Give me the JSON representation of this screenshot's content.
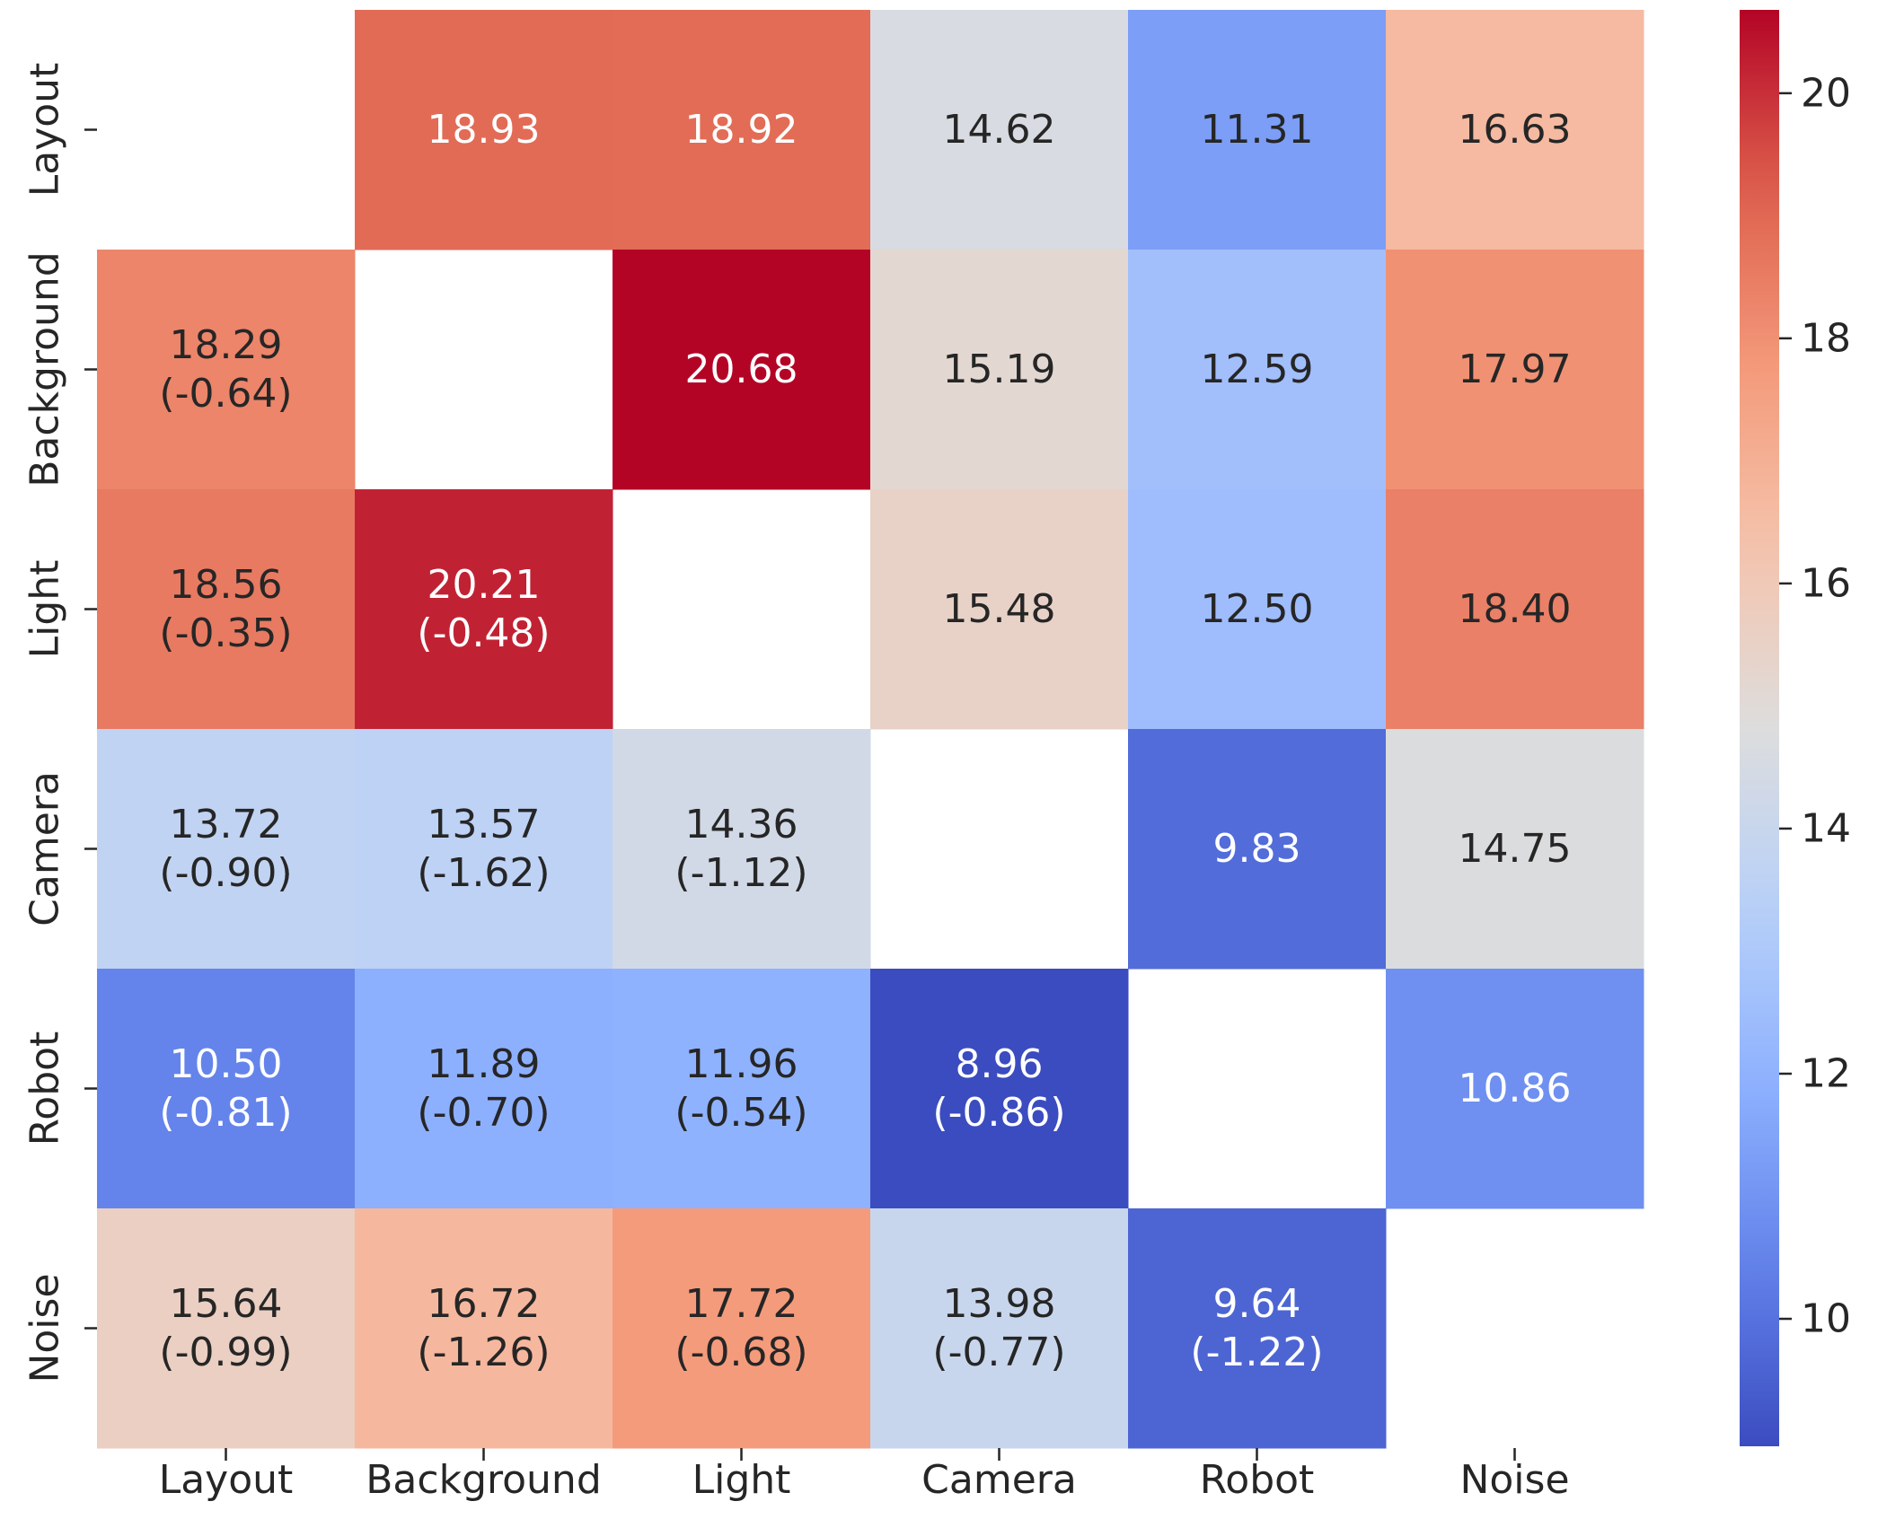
{
  "chart_data": {
    "type": "heatmap",
    "title": "",
    "xlabel": "",
    "ylabel": "",
    "x_categories": [
      "Layout",
      "Background",
      "Light",
      "Camera",
      "Robot",
      "Noise"
    ],
    "y_categories": [
      "Layout",
      "Background",
      "Light",
      "Camera",
      "Robot",
      "Noise"
    ],
    "values": [
      [
        null,
        18.93,
        18.92,
        14.62,
        11.31,
        16.63
      ],
      [
        18.29,
        null,
        20.68,
        15.19,
        12.59,
        17.97
      ],
      [
        18.56,
        20.21,
        null,
        15.48,
        12.5,
        18.4
      ],
      [
        13.72,
        13.57,
        14.36,
        null,
        9.83,
        14.75
      ],
      [
        10.5,
        11.89,
        11.96,
        8.96,
        null,
        10.86
      ],
      [
        15.64,
        16.72,
        17.72,
        13.98,
        9.64,
        null
      ]
    ],
    "cell_labels": [
      [
        [
          "",
          ""
        ],
        [
          "18.93",
          ""
        ],
        [
          "18.92",
          ""
        ],
        [
          "14.62",
          ""
        ],
        [
          "11.31",
          ""
        ],
        [
          "16.63",
          ""
        ]
      ],
      [
        [
          "18.29",
          "(-0.64)"
        ],
        [
          "",
          ""
        ],
        [
          "20.68",
          ""
        ],
        [
          "15.19",
          ""
        ],
        [
          "12.59",
          ""
        ],
        [
          "17.97",
          ""
        ]
      ],
      [
        [
          "18.56",
          "(-0.35)"
        ],
        [
          "20.21",
          "(-0.48)"
        ],
        [
          "",
          ""
        ],
        [
          "15.48",
          ""
        ],
        [
          "12.50",
          ""
        ],
        [
          "18.40",
          ""
        ]
      ],
      [
        [
          "13.72",
          "(-0.90)"
        ],
        [
          "13.57",
          "(-1.62)"
        ],
        [
          "14.36",
          "(-1.12)"
        ],
        [
          "",
          ""
        ],
        [
          "9.83",
          ""
        ],
        [
          "14.75",
          ""
        ]
      ],
      [
        [
          "10.50",
          "(-0.81)"
        ],
        [
          "11.89",
          "(-0.70)"
        ],
        [
          "11.96",
          "(-0.54)"
        ],
        [
          "8.96",
          "(-0.86)"
        ],
        [
          "",
          ""
        ],
        [
          "10.86",
          ""
        ]
      ],
      [
        [
          "15.64",
          "(-0.99)"
        ],
        [
          "16.72",
          "(-1.26)"
        ],
        [
          "17.72",
          "(-0.68)"
        ],
        [
          "13.98",
          "(-0.77)"
        ],
        [
          "9.64",
          "(-1.22)"
        ],
        [
          "",
          ""
        ]
      ]
    ],
    "colormap": "coolwarm",
    "vmin": 8.96,
    "vmax": 20.68,
    "colorbar": {
      "ticks": [
        10,
        12,
        14,
        16,
        18,
        20
      ],
      "tick_labels": [
        "10",
        "12",
        "14",
        "16",
        "18",
        "20"
      ],
      "placement": "right"
    },
    "grid": false,
    "legend": "none"
  }
}
